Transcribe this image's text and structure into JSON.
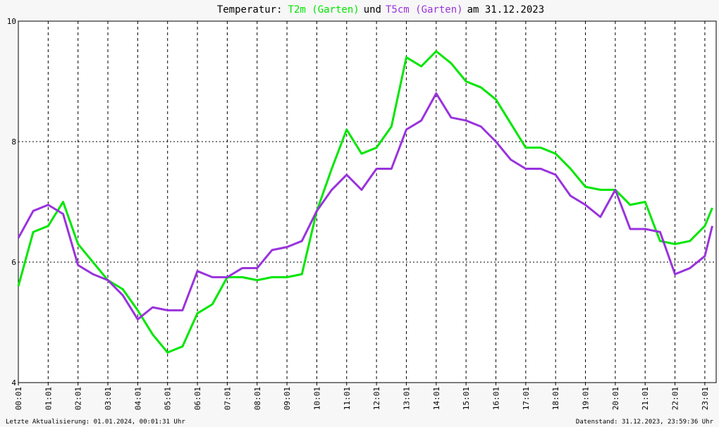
{
  "chart_data": {
    "type": "line",
    "title_start": "Temperatur:",
    "title_join": "und",
    "title_end": "am 31.12.2023",
    "footer_left": "Letzte Aktualisierung: 01.01.2024, 00:01:31 Uhr",
    "footer_right": "Datenstand: 31.12.2023, 23:59:36 Uhr",
    "x": [
      0,
      0.5,
      1,
      1.5,
      2,
      2.5,
      3,
      3.5,
      4,
      4.5,
      5,
      5.5,
      6,
      6.5,
      7,
      7.5,
      8,
      8.5,
      9,
      9.5,
      10,
      10.5,
      11,
      11.5,
      12,
      12.5,
      13,
      13.5,
      14,
      14.5,
      15,
      15.5,
      16,
      16.5,
      17,
      17.5,
      18,
      18.5,
      19,
      19.5,
      20,
      20.5,
      21,
      21.5,
      22,
      22.5,
      23,
      23.25
    ],
    "series": [
      {
        "name": "T2m (Garten)",
        "color": "#00e600",
        "values": [
          5.6,
          6.5,
          6.6,
          7.0,
          6.3,
          6.0,
          5.7,
          5.55,
          5.2,
          4.8,
          4.5,
          4.6,
          5.15,
          5.3,
          5.75,
          5.75,
          5.7,
          5.75,
          5.75,
          5.8,
          6.85,
          7.55,
          8.2,
          7.8,
          7.9,
          8.25,
          9.4,
          9.25,
          9.5,
          9.3,
          9.0,
          8.9,
          8.7,
          8.3,
          7.9,
          7.9,
          7.8,
          7.55,
          7.25,
          7.2,
          7.2,
          6.95,
          7.0,
          6.35,
          6.3,
          6.35,
          6.6,
          6.9
        ]
      },
      {
        "name": "T5cm (Garten)",
        "color": "#9933dd",
        "values": [
          6.4,
          6.85,
          6.95,
          6.8,
          5.95,
          5.8,
          5.7,
          5.45,
          5.05,
          5.25,
          5.2,
          5.2,
          5.85,
          5.75,
          5.75,
          5.9,
          5.9,
          6.2,
          6.25,
          6.35,
          6.85,
          7.2,
          7.45,
          7.2,
          7.55,
          7.55,
          8.2,
          8.35,
          8.8,
          8.4,
          8.35,
          8.25,
          8.0,
          7.7,
          7.55,
          7.55,
          7.45,
          7.1,
          6.95,
          6.75,
          7.2,
          6.55,
          6.55,
          6.5,
          5.8,
          5.9,
          6.1,
          6.6
        ]
      }
    ],
    "xlim": [
      0,
      23.38
    ],
    "xticks": [
      {
        "value": 0,
        "label": "00:01"
      },
      {
        "value": 1,
        "label": "01:01"
      },
      {
        "value": 2,
        "label": "02:01"
      },
      {
        "value": 3,
        "label": "03:01"
      },
      {
        "value": 4,
        "label": "04:01"
      },
      {
        "value": 5,
        "label": "05:01"
      },
      {
        "value": 6,
        "label": "06:01"
      },
      {
        "value": 7,
        "label": "07:01"
      },
      {
        "value": 8,
        "label": "08:01"
      },
      {
        "value": 9,
        "label": "09:01"
      },
      {
        "value": 10,
        "label": "10:01"
      },
      {
        "value": 11,
        "label": "11:01"
      },
      {
        "value": 12,
        "label": "12:01"
      },
      {
        "value": 13,
        "label": "13:01"
      },
      {
        "value": 14,
        "label": "14:01"
      },
      {
        "value": 15,
        "label": "15:01"
      },
      {
        "value": 16,
        "label": "16:01"
      },
      {
        "value": 17,
        "label": "17:01"
      },
      {
        "value": 18,
        "label": "18:01"
      },
      {
        "value": 19,
        "label": "19:01"
      },
      {
        "value": 20,
        "label": "20:01"
      },
      {
        "value": 21,
        "label": "21:01"
      },
      {
        "value": 22,
        "label": "22:01"
      },
      {
        "value": 23,
        "label": "23:01"
      }
    ],
    "ylim": [
      4,
      10
    ],
    "yticks": [
      4,
      6,
      8,
      10
    ],
    "grid": true
  }
}
